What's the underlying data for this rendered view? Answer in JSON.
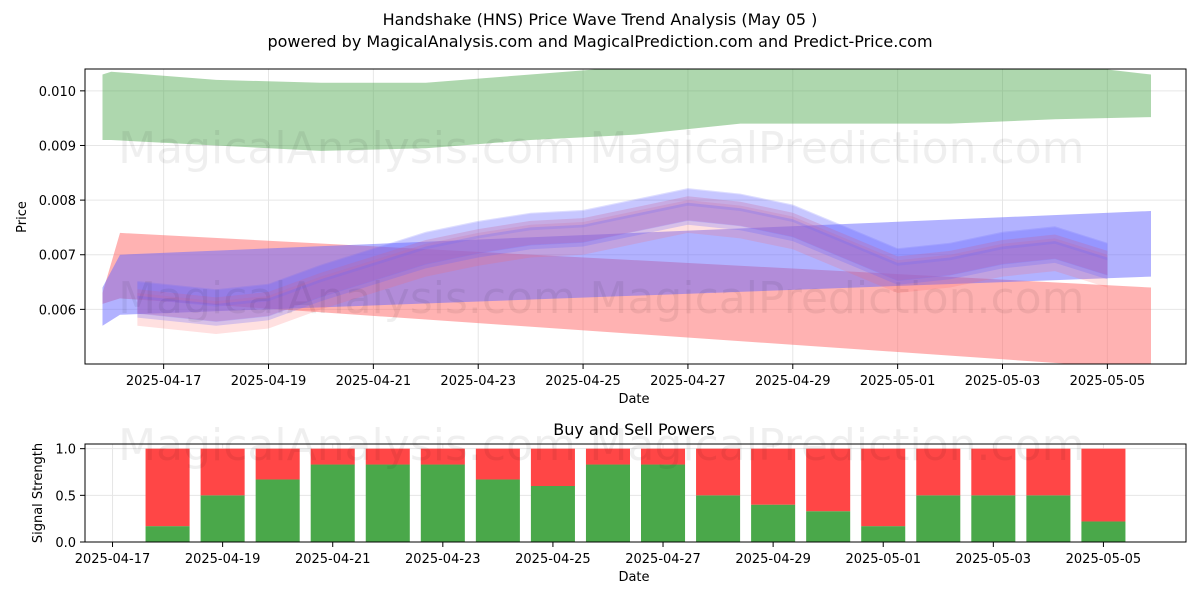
{
  "titles": {
    "line1": "Handshake (HNS) Price Wave Trend Analysis (May 05 )",
    "line2": "powered by MagicalAnalysis.com and MagicalPrediction.com and Predict-Price.com"
  },
  "watermarks": [
    "MagicalAnalysis.com",
    "MagicalPrediction.com"
  ],
  "colors": {
    "green_band": "#4ca64c",
    "red_band": "#ff6666",
    "blue_band": "#6666ff",
    "buy": "#4aa84a",
    "sell": "#ff4646"
  },
  "chart_data": [
    {
      "type": "area",
      "title": "",
      "xlabel": "Date",
      "ylabel": "Price",
      "xlim": [
        "2025-04-15T12:00",
        "2025-05-06T12:00"
      ],
      "ylim": [
        0.005,
        0.0104
      ],
      "grid": true,
      "x_ticks": [
        "2025-04-17",
        "2025-04-19",
        "2025-04-21",
        "2025-04-23",
        "2025-04-25",
        "2025-04-27",
        "2025-04-29",
        "2025-05-01",
        "2025-05-03",
        "2025-05-05"
      ],
      "y_ticks": [
        0.006,
        0.007,
        0.008,
        0.009,
        0.01
      ],
      "y_tick_labels": [
        "0.006",
        "0.007",
        "0.008",
        "0.009",
        "0.010"
      ],
      "bands": [
        {
          "color": "green",
          "opacity": 0.45,
          "x": [
            "2025-04-15T20:00",
            "2025-04-16",
            "2025-04-18",
            "2025-04-20",
            "2025-04-22",
            "2025-04-24",
            "2025-04-26",
            "2025-04-28",
            "2025-04-30",
            "2025-05-02",
            "2025-05-04",
            "2025-05-05T20:00"
          ],
          "upper": [
            0.0103,
            0.01035,
            0.0102,
            0.01015,
            0.01015,
            0.0103,
            0.01045,
            0.0105,
            0.0105,
            0.0105,
            0.0105,
            0.0103
          ],
          "lower": [
            0.0091,
            0.0091,
            0.009,
            0.0089,
            0.00895,
            0.0091,
            0.0092,
            0.0094,
            0.0094,
            0.0094,
            0.00948,
            0.00952
          ]
        },
        {
          "color": "red",
          "opacity": 0.5,
          "x": [
            "2025-04-15T20:00",
            "2025-04-16T04:00",
            "2025-05-05T20:00"
          ],
          "upper": [
            0.0063,
            0.0074,
            0.0064
          ],
          "lower": [
            0.0061,
            0.0062,
            0.0049
          ]
        },
        {
          "color": "blue",
          "opacity": 0.5,
          "x": [
            "2025-04-15T20:00",
            "2025-04-16T04:00",
            "2025-05-05T20:00"
          ],
          "upper": [
            0.0064,
            0.007,
            0.0078
          ],
          "lower": [
            0.0057,
            0.0059,
            0.0066
          ]
        }
      ],
      "wave_dates": [
        "2025-04-16T12:00",
        "2025-04-18",
        "2025-04-19",
        "2025-04-20",
        "2025-04-21",
        "2025-04-22",
        "2025-04-23",
        "2025-04-24",
        "2025-04-25",
        "2025-04-26",
        "2025-04-27",
        "2025-04-28",
        "2025-04-29",
        "2025-04-30",
        "2025-05-01",
        "2025-05-02",
        "2025-05-03",
        "2025-05-04",
        "2025-05-05"
      ],
      "wave_center": [
        0.0061,
        0.00595,
        0.00605,
        0.0064,
        0.0067,
        0.007,
        0.0072,
        0.00735,
        0.0074,
        0.0076,
        0.0078,
        0.0077,
        0.0075,
        0.0071,
        0.0067,
        0.0068,
        0.007,
        0.0071,
        0.0068
      ],
      "wave_layers": [
        {
          "color": "red",
          "opacity": 0.28,
          "offset": 5e-05,
          "half": 0.00022
        },
        {
          "color": "red",
          "opacity": 0.2,
          "offset": -0.0001,
          "half": 0.0003
        },
        {
          "color": "blue",
          "opacity": 0.22,
          "offset": 0.00012,
          "half": 0.0003
        },
        {
          "color": "blue",
          "opacity": 0.26,
          "offset": -5e-05,
          "half": 0.0002
        },
        {
          "color": "blue",
          "opacity": 0.18,
          "offset": 0.00025,
          "half": 0.00015
        }
      ]
    },
    {
      "type": "bar",
      "title": "Buy and Sell Powers",
      "xlabel": "Date",
      "ylabel": "Signal Strength",
      "xlim": [
        "2025-04-16T12:00",
        "2025-05-06T12:00"
      ],
      "ylim": [
        0,
        1.05
      ],
      "grid": true,
      "x_ticks": [
        "2025-04-17",
        "2025-04-19",
        "2025-04-21",
        "2025-04-23",
        "2025-04-25",
        "2025-04-27",
        "2025-04-29",
        "2025-05-01",
        "2025-05-03",
        "2025-05-05"
      ],
      "y_ticks": [
        0,
        0.5,
        1
      ],
      "y_tick_labels": [
        "0.0",
        "0.5",
        "1.0"
      ],
      "categories": [
        "2025-04-18",
        "2025-04-19",
        "2025-04-20",
        "2025-04-21",
        "2025-04-22",
        "2025-04-23",
        "2025-04-24",
        "2025-04-25",
        "2025-04-26",
        "2025-04-27",
        "2025-04-28",
        "2025-04-29",
        "2025-04-30",
        "2025-05-01",
        "2025-05-02",
        "2025-05-03",
        "2025-05-04",
        "2025-05-05"
      ],
      "series": [
        {
          "color": "green",
          "values": [
            0.17,
            0.5,
            0.67,
            0.83,
            0.83,
            0.83,
            0.67,
            0.6,
            0.83,
            0.83,
            0.5,
            0.4,
            0.33,
            0.17,
            0.5,
            0.5,
            0.5,
            0.22
          ]
        },
        {
          "color": "red",
          "values": [
            0.83,
            0.5,
            0.33,
            0.17,
            0.17,
            0.17,
            0.33,
            0.4,
            0.17,
            0.17,
            0.5,
            0.6,
            0.67,
            0.83,
            0.5,
            0.5,
            0.5,
            0.78
          ]
        }
      ]
    }
  ]
}
